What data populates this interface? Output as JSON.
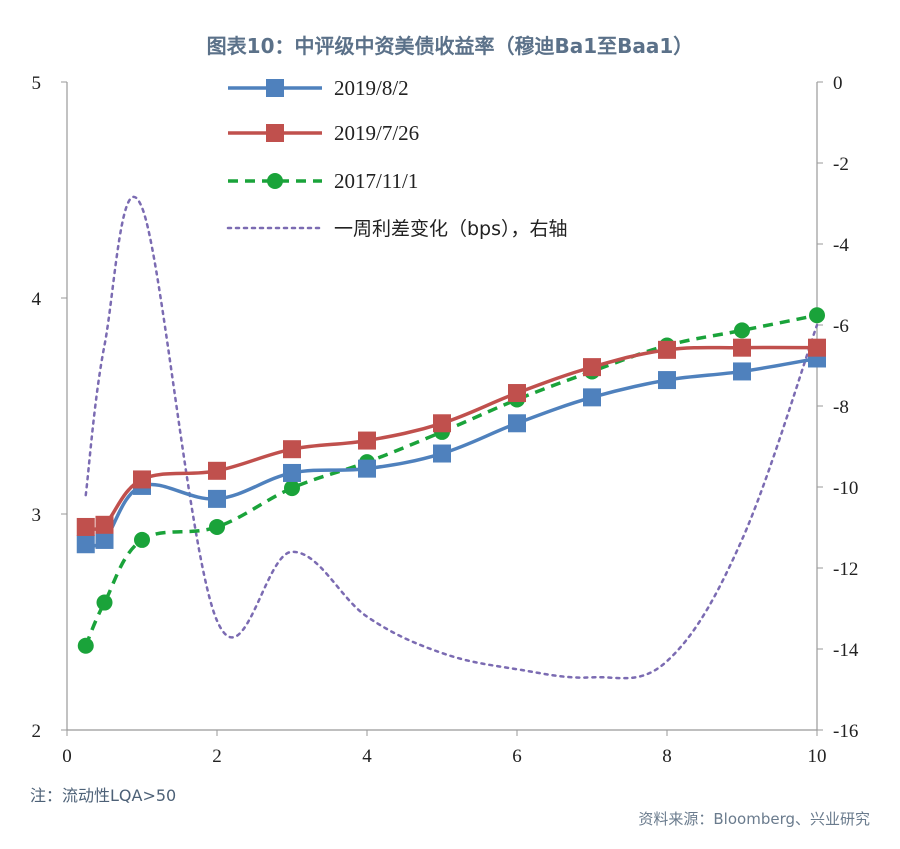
{
  "title": "图表10：中评级中资美债收益率（穆迪Ba1至Baa1）",
  "note": "注：流动性LQA>50",
  "source": "资料来源：Bloomberg、兴业研究",
  "chart_data": {
    "type": "line",
    "xlim": [
      0,
      10
    ],
    "ylim_left": [
      2,
      5
    ],
    "ylim_right": [
      -16,
      0
    ],
    "x_ticks": [
      "0",
      "2",
      "4",
      "6",
      "8",
      "10"
    ],
    "y_left_ticks": [
      "2",
      "3",
      "4",
      "5"
    ],
    "y_right_ticks": [
      "0",
      "-2",
      "-4",
      "-6",
      "-8",
      "-10",
      "-12",
      "-14",
      "-16"
    ],
    "series": [
      {
        "name": "2019/8/2",
        "axis": "left",
        "color": "#4f81bd",
        "marker": "square",
        "dash": "solid",
        "x": [
          0.25,
          0.5,
          1,
          2,
          3,
          4,
          5,
          6,
          7,
          8,
          9,
          10
        ],
        "y": [
          2.86,
          2.88,
          3.13,
          3.07,
          3.19,
          3.21,
          3.28,
          3.42,
          3.54,
          3.62,
          3.66,
          3.72
        ]
      },
      {
        "name": "2019/7/26",
        "axis": "left",
        "color": "#c0504d",
        "marker": "square-red",
        "dash": "solid",
        "x": [
          0.25,
          0.5,
          1,
          2,
          3,
          4,
          5,
          6,
          7,
          8,
          9,
          10
        ],
        "y": [
          2.94,
          2.95,
          3.16,
          3.2,
          3.3,
          3.34,
          3.42,
          3.56,
          3.68,
          3.76,
          3.77,
          3.77
        ]
      },
      {
        "name": "2017/11/1",
        "axis": "left",
        "color": "#1aa33a",
        "marker": "circle",
        "dash": "dashed",
        "x": [
          0.25,
          0.5,
          1,
          2,
          3,
          4,
          5,
          6,
          7,
          8,
          9,
          10
        ],
        "y": [
          2.39,
          2.59,
          2.88,
          2.94,
          3.12,
          3.24,
          3.38,
          3.53,
          3.66,
          3.78,
          3.85,
          3.92
        ]
      },
      {
        "name": "一周利差变化（bps），右轴",
        "axis": "right",
        "color": "#7b6bb2",
        "marker": "none",
        "dash": "dotted",
        "x": [
          0.25,
          0.5,
          1,
          2,
          3,
          4,
          5,
          6,
          7,
          8,
          9,
          10
        ],
        "y": [
          -10.2,
          -6.5,
          -3.1,
          -13.3,
          -11.6,
          -13.2,
          -14.1,
          -14.5,
          -14.7,
          -14.3,
          -11.3,
          -6.0
        ]
      }
    ]
  }
}
